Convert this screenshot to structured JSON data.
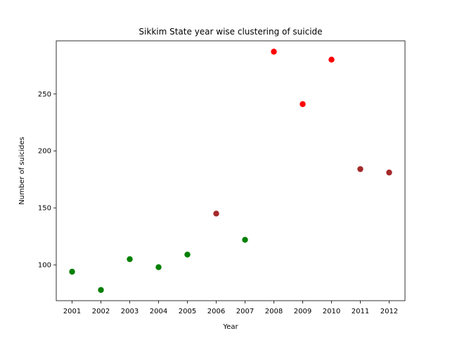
{
  "chart_data": {
    "type": "scatter",
    "title": "Sikkim State year wise clustering of suicide",
    "xlabel": "Year",
    "ylabel": "Number of suicides",
    "x_ticks": [
      "2001",
      "2002",
      "2003",
      "2004",
      "2005",
      "2006",
      "2007",
      "2008",
      "2009",
      "2010",
      "2011",
      "2012"
    ],
    "y_ticks": [
      100,
      150,
      200,
      250
    ],
    "xlim": [
      2000.45,
      2012.55
    ],
    "ylim": [
      68.6,
      296.5
    ],
    "grid": false,
    "legend": "none",
    "points": [
      {
        "x": 2001,
        "y": 94,
        "color": "#008000"
      },
      {
        "x": 2002,
        "y": 78,
        "color": "#008000"
      },
      {
        "x": 2003,
        "y": 105,
        "color": "#008000"
      },
      {
        "x": 2004,
        "y": 98,
        "color": "#008000"
      },
      {
        "x": 2005,
        "y": 109,
        "color": "#008000"
      },
      {
        "x": 2006,
        "y": 145,
        "color": "#a52a2a"
      },
      {
        "x": 2007,
        "y": 122,
        "color": "#008000"
      },
      {
        "x": 2008,
        "y": 287,
        "color": "#ff0000"
      },
      {
        "x": 2009,
        "y": 241,
        "color": "#ff0000"
      },
      {
        "x": 2010,
        "y": 280,
        "color": "#ff0000"
      },
      {
        "x": 2011,
        "y": 184,
        "color": "#a52a2a"
      },
      {
        "x": 2012,
        "y": 181,
        "color": "#a52a2a"
      }
    ]
  }
}
